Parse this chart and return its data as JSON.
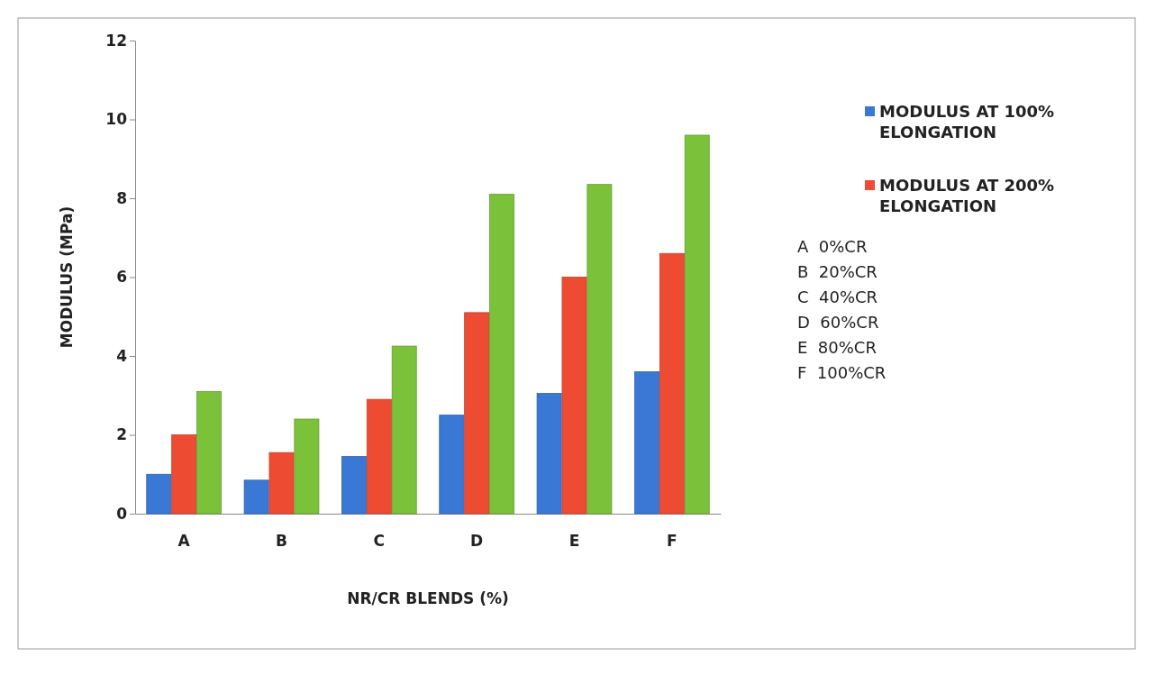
{
  "chart_data": {
    "type": "bar",
    "xlabel": "NR/CR BLENDS (%)",
    "ylabel": "MODULUS  (MPa)",
    "categories": [
      "A",
      "B",
      "C",
      "D",
      "E",
      "F"
    ],
    "series": [
      {
        "name": "MODULUS AT 100% ELONGATION",
        "color": "#3a78d6",
        "values": [
          1.0,
          0.85,
          1.45,
          2.5,
          3.05,
          3.6
        ]
      },
      {
        "name": "MODULUS AT 200% ELONGATION",
        "color": "#ee4b33",
        "values": [
          2.0,
          1.55,
          2.9,
          5.1,
          6.0,
          6.6
        ]
      },
      {
        "color": "#7cc13a",
        "values": [
          3.1,
          2.4,
          4.25,
          8.1,
          8.35,
          9.6
        ]
      }
    ],
    "ylim": [
      0,
      12
    ],
    "yticks": [
      0,
      2,
      4,
      6,
      8,
      10,
      12
    ],
    "grid": false,
    "legend": "right",
    "annotations": [
      "A  0%CR",
      "B  20%CR",
      "C  40%CR",
      "D  60%CR",
      "E  80%CR",
      "F  100%CR"
    ]
  }
}
